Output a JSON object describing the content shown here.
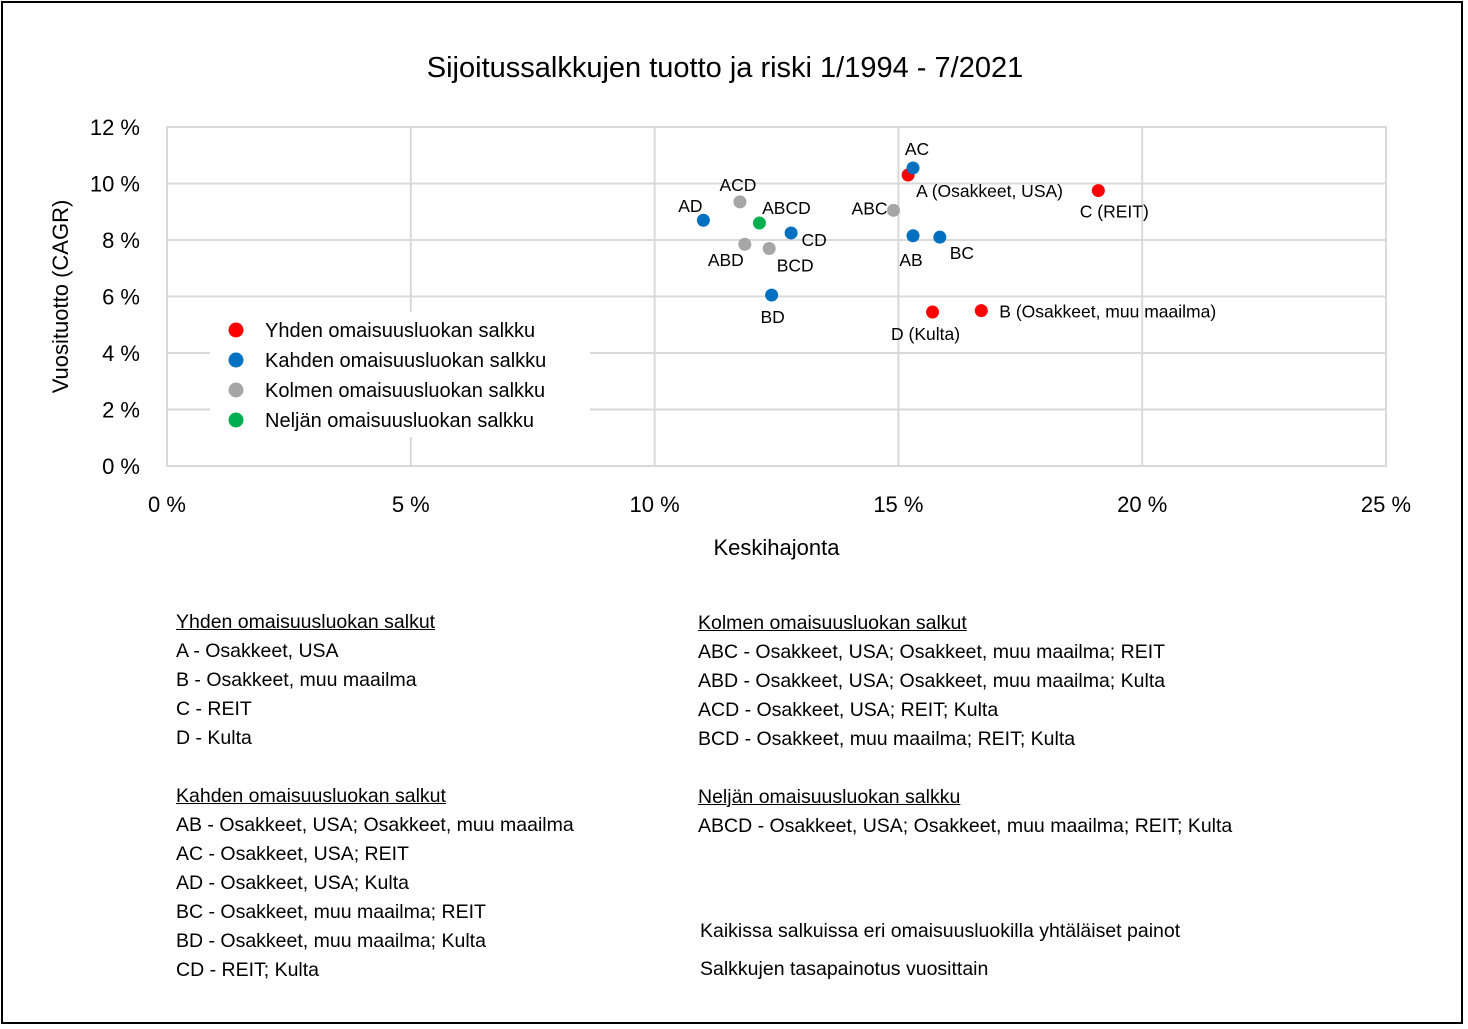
{
  "chart_data": {
    "type": "scatter",
    "title": "Sijoitussalkkujen tuotto ja riski 1/1994 - 7/2021",
    "xlabel": "Keskihajonta",
    "ylabel": "Vuosituotto (CAGR)",
    "xlim": [
      0,
      25
    ],
    "ylim": [
      0,
      12
    ],
    "x_ticks": [
      0,
      5,
      10,
      15,
      20,
      25
    ],
    "x_tick_labels": [
      "0 %",
      "5 %",
      "10 %",
      "15 %",
      "20 %",
      "25 %"
    ],
    "y_ticks": [
      0,
      2,
      4,
      6,
      8,
      10,
      12
    ],
    "y_tick_labels": [
      "0 %",
      "2 %",
      "4 %",
      "6 %",
      "8 %",
      "10 %",
      "12 %"
    ],
    "grid": true,
    "legend_position": "lower-left",
    "series": [
      {
        "name": "Yhden omaisuusluokan salkku",
        "color": "#ff0000",
        "points": [
          {
            "label": "A (Osakkeet, USA)",
            "x": 15.2,
            "y": 10.3
          },
          {
            "label": "B (Osakkeet, muu maailma)",
            "x": 16.7,
            "y": 5.5
          },
          {
            "label": "C (REIT)",
            "x": 19.1,
            "y": 9.75
          },
          {
            "label": "D (Kulta)",
            "x": 15.7,
            "y": 5.45
          }
        ]
      },
      {
        "name": "Kahden omaisuusluokan salkku",
        "color": "#0070c0",
        "points": [
          {
            "label": "AB",
            "x": 15.3,
            "y": 8.15
          },
          {
            "label": "AC",
            "x": 15.3,
            "y": 10.55
          },
          {
            "label": "AD",
            "x": 11.0,
            "y": 8.7
          },
          {
            "label": "BC",
            "x": 15.85,
            "y": 8.1
          },
          {
            "label": "BD",
            "x": 12.4,
            "y": 6.05
          },
          {
            "label": "CD",
            "x": 12.8,
            "y": 8.25
          }
        ]
      },
      {
        "name": "Kolmen omaisuusluokan salkku",
        "color": "#a6a6a6",
        "points": [
          {
            "label": "ABC",
            "x": 14.9,
            "y": 9.05
          },
          {
            "label": "ABD",
            "x": 11.85,
            "y": 7.85
          },
          {
            "label": "ACD",
            "x": 11.75,
            "y": 9.35
          },
          {
            "label": "BCD",
            "x": 12.35,
            "y": 7.7
          }
        ]
      },
      {
        "name": "Neljän omaisuusluokan salkku",
        "color": "#00b050",
        "points": [
          {
            "label": "ABCD",
            "x": 12.15,
            "y": 8.6
          }
        ]
      }
    ]
  },
  "notes": {
    "left": [
      {
        "heading": "Yhden omaisuusluokan salkut",
        "items": [
          "A - Osakkeet, USA",
          "B - Osakkeet, muu maailma",
          "C - REIT",
          "D - Kulta"
        ]
      },
      {
        "heading": "Kahden omaisuusluokan salkut",
        "items": [
          "AB - Osakkeet, USA; Osakkeet, muu maailma",
          "AC - Osakkeet, USA; REIT",
          "AD - Osakkeet, USA; Kulta",
          "BC - Osakkeet, muu maailma; REIT",
          "BD - Osakkeet, muu maailma; Kulta",
          "CD - REIT; Kulta"
        ]
      }
    ],
    "right": [
      {
        "heading": "Kolmen omaisuusluokan salkut",
        "items": [
          "ABC - Osakkeet, USA; Osakkeet, muu maailma; REIT",
          "ABD - Osakkeet, USA; Osakkeet, muu maailma; Kulta",
          "ACD - Osakkeet, USA; REIT; Kulta",
          "BCD - Osakkeet, muu maailma; REIT; Kulta"
        ]
      },
      {
        "heading": "Neljän omaisuusluokan salkku",
        "items": [
          "ABCD - Osakkeet, USA; Osakkeet, muu maailma; REIT; Kulta"
        ]
      }
    ],
    "footer": [
      "Kaikissa salkuissa eri omaisuusluokilla yhtäläiset painot",
      "Salkkujen tasapainotus vuosittain"
    ]
  }
}
